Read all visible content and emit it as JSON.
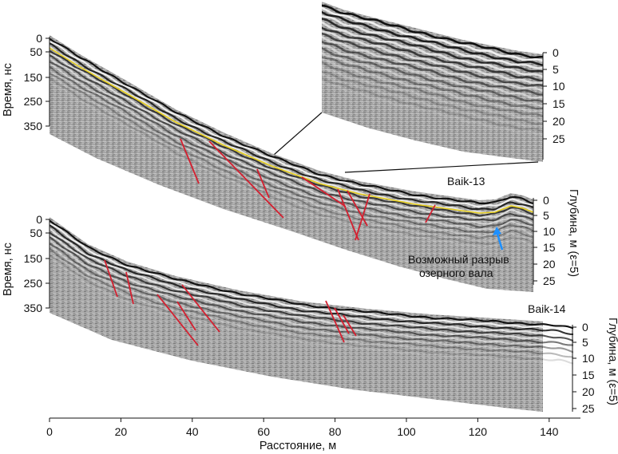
{
  "profiles": [
    {
      "name": "Baik-13"
    },
    {
      "name": "Baik-14"
    }
  ],
  "time_axis": {
    "label": "Время, нс",
    "ticks": [
      "0",
      "50",
      "150",
      "250",
      "350"
    ]
  },
  "depth_axis": {
    "label": "Глубина, м (ε=5)",
    "ticks": [
      "0",
      "5",
      "10",
      "15",
      "20",
      "25"
    ]
  },
  "distance_axis": {
    "label": "Расстояние, м",
    "ticks": [
      "0",
      "20",
      "40",
      "60",
      "80",
      "100",
      "120",
      "140"
    ]
  },
  "annotation": {
    "line1": "Возможный разрыв",
    "line2": "озерного вала"
  },
  "colors": {
    "fault_lines": "#d42030",
    "surface_line": "#e8d020",
    "annotation_text": "#ffffff",
    "annotation_arrow": "#1e90ff",
    "radar_dark": "#111111",
    "radar_light": "#f4f4f4",
    "radar_mid": "#9a9a9a"
  }
}
